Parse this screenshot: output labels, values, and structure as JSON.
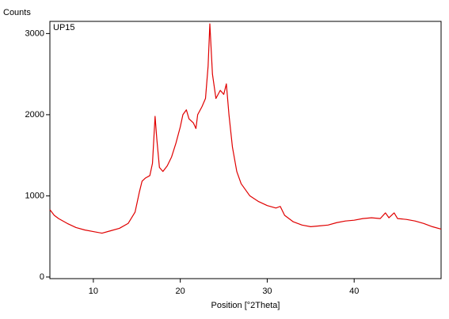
{
  "chart_data": {
    "type": "line",
    "y_label": "Counts",
    "x_label": "Position [°2Theta]",
    "x": [
      5,
      5.5,
      6,
      7,
      8,
      9,
      10,
      11,
      12,
      13,
      14,
      14.8,
      15.3,
      15.6,
      16,
      16.5,
      16.8,
      17.1,
      17.3,
      17.6,
      18,
      18.5,
      19,
      19.5,
      20,
      20.3,
      20.7,
      21,
      21.5,
      21.8,
      22,
      22.5,
      22.9,
      23.2,
      23.4,
      23.7,
      24.1,
      24.6,
      25,
      25.3,
      25.6,
      26,
      26.5,
      27,
      28,
      29,
      30,
      31,
      31.5,
      32,
      33,
      34,
      35,
      36,
      37,
      38,
      39,
      40,
      41,
      42,
      43,
      43.6,
      44,
      44.6,
      45,
      46,
      47,
      48,
      49,
      50
    ],
    "series": [
      {
        "name": "UP15",
        "color": "#e00000",
        "values": [
          830,
          760,
          720,
          660,
          610,
          580,
          560,
          540,
          570,
          600,
          660,
          800,
          1050,
          1180,
          1220,
          1250,
          1400,
          1980,
          1700,
          1350,
          1300,
          1370,
          1480,
          1650,
          1850,
          2000,
          2060,
          1950,
          1900,
          1830,
          2000,
          2100,
          2200,
          2600,
          3120,
          2500,
          2200,
          2300,
          2250,
          2380,
          2000,
          1600,
          1300,
          1150,
          1000,
          930,
          880,
          850,
          870,
          760,
          680,
          640,
          620,
          630,
          640,
          670,
          690,
          700,
          720,
          730,
          720,
          790,
          730,
          790,
          720,
          710,
          690,
          660,
          620,
          590
        ]
      }
    ],
    "xlim": [
      5,
      50
    ],
    "xticks": [
      10,
      20,
      30,
      40
    ],
    "ylim": [
      -20,
      3150
    ],
    "yticks": [
      0,
      1000,
      2000,
      3000
    ]
  }
}
